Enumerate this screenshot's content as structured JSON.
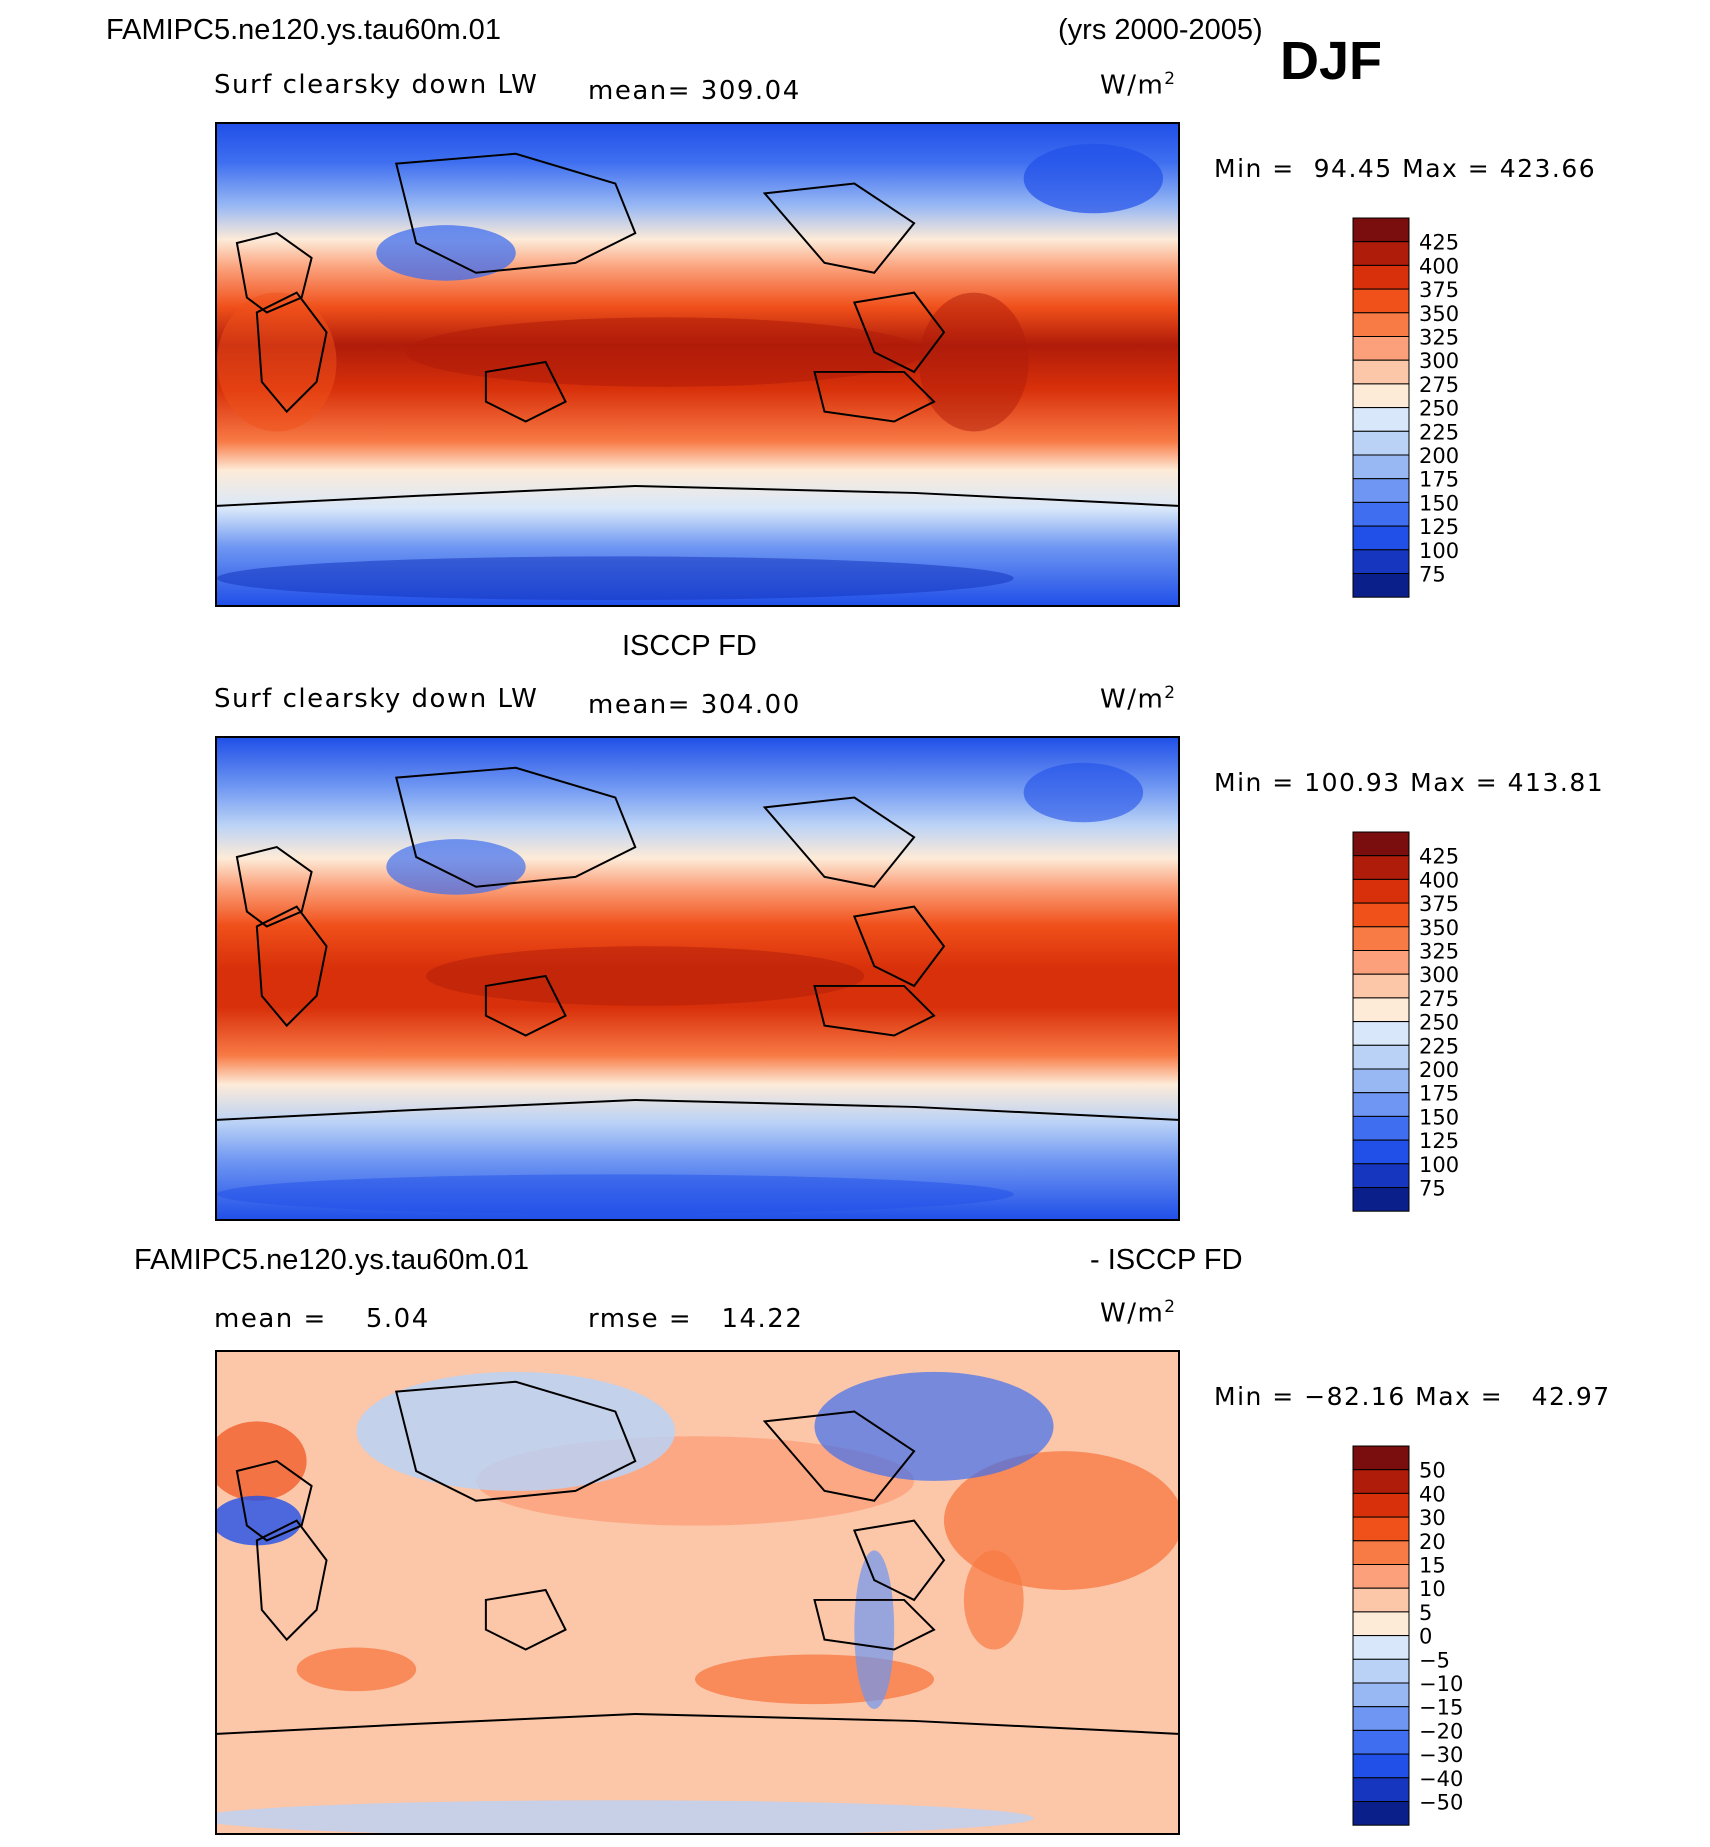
{
  "header": {
    "case_name": "FAMIPC5.ne120.ys.tau60m.01",
    "years": "(yrs 2000-2005)",
    "season": "DJF"
  },
  "panels": [
    {
      "id": "model",
      "variable": "Surf clearsky down LW",
      "mean_text": "mean= 309.04",
      "units": "W/m",
      "units_sup": "2",
      "minmax_text": "Min =  94.45 Max = 423.66"
    },
    {
      "id": "obs",
      "title": "ISCCP FD",
      "variable": "Surf clearsky down LW",
      "mean_text": "mean= 304.00",
      "units": "W/m",
      "units_sup": "2",
      "minmax_text": "Min = 100.93 Max = 413.81"
    },
    {
      "id": "diff",
      "title_left": "FAMIPC5.ne120.ys.tau60m.01",
      "title_right": "- ISCCP FD",
      "mean_text": "mean =    5.04",
      "rmse_text": "rmse =   14.22",
      "units": "W/m",
      "units_sup": "2",
      "minmax_text": "Min = −82.16 Max =   42.97"
    }
  ],
  "colorbars": {
    "absolute": {
      "labels": [
        "425",
        "400",
        "375",
        "350",
        "325",
        "300",
        "275",
        "250",
        "225",
        "200",
        "175",
        "150",
        "125",
        "100",
        "75"
      ],
      "colors": [
        "#7a0d0d",
        "#b01c0a",
        "#d8300a",
        "#f0501a",
        "#f87a45",
        "#fba07a",
        "#fcc6a8",
        "#fdebd8",
        "#d8e8fa",
        "#bad2f6",
        "#98b8f4",
        "#6e96f2",
        "#3f6ff0",
        "#2150e8",
        "#1636c0",
        "#0b1f8a"
      ]
    },
    "difference": {
      "labels": [
        "50",
        "40",
        "30",
        "20",
        "15",
        "10",
        "5",
        "0",
        "−5",
        "−10",
        "−15",
        "−20",
        "−30",
        "−40",
        "−50"
      ],
      "colors": [
        "#7a0d0d",
        "#b01c0a",
        "#d8300a",
        "#f0501a",
        "#f87a45",
        "#fba07a",
        "#fcc6a8",
        "#fdebd8",
        "#d8e8fa",
        "#bad2f6",
        "#98b8f4",
        "#6e96f2",
        "#3f6ff0",
        "#2150e8",
        "#1636c0",
        "#0b1f8a"
      ]
    }
  }
}
